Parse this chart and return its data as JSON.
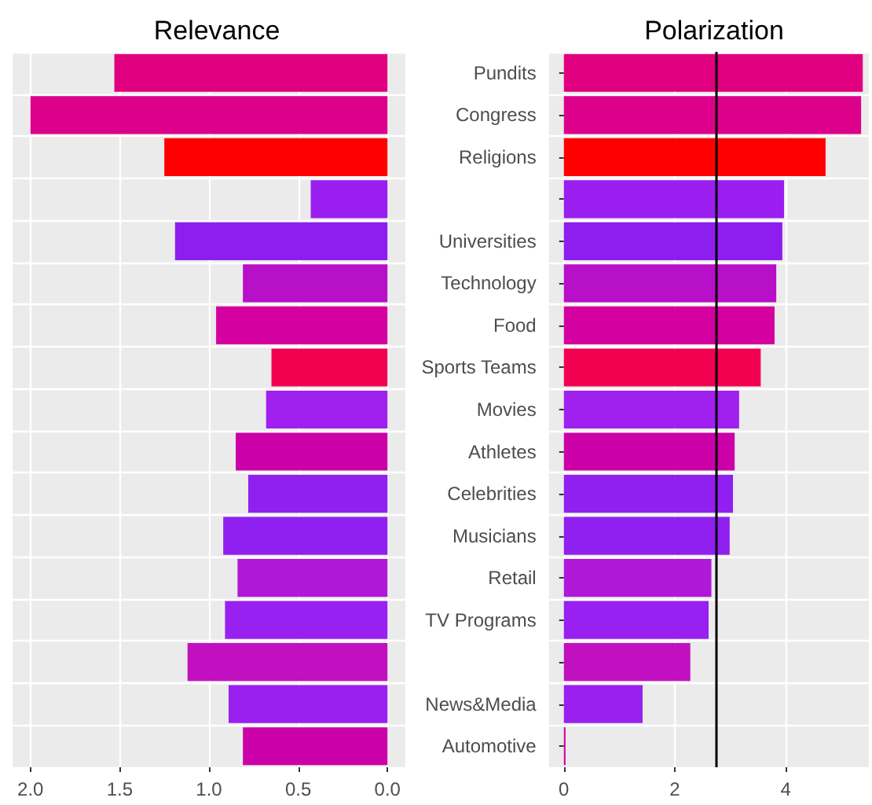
{
  "chart_data": [
    {
      "type": "bar",
      "title": "Relevance",
      "orientation": "horizontal",
      "tick_labels": "x",
      "grid": true,
      "categories": [
        null,
        null,
        null,
        null,
        null,
        null,
        null,
        null,
        null,
        null,
        null,
        null,
        null,
        null,
        null,
        null,
        null
      ],
      "values": [
        1.53,
        2.0,
        1.25,
        0.43,
        1.19,
        0.81,
        0.96,
        0.65,
        0.68,
        0.85,
        0.78,
        0.92,
        0.84,
        0.91,
        1.12,
        0.89,
        0.81
      ],
      "colors": [
        "#e0007f",
        "#dd008a",
        "#ff0000",
        "#9a1ef0",
        "#8e1ef0",
        "#b80fc8",
        "#d400a0",
        "#f20050",
        "#a020f0",
        "#cc00a8",
        "#9020f0",
        "#9020f0",
        "#b018d8",
        "#9820f0",
        "#c010c0",
        "#9a20f0",
        "#cc00a8"
      ],
      "xlim": [
        2.1,
        -0.1
      ],
      "xticks": [
        {
          "value": 2,
          "label": "2.0"
        },
        {
          "value": 1.5,
          "label": "1.5"
        },
        {
          "value": 1,
          "label": "1.0"
        },
        {
          "value": 0.5,
          "label": "0.5"
        },
        {
          "value": 0,
          "label": "0.0"
        }
      ]
    },
    {
      "type": "bar",
      "title": "Polarization",
      "orientation": "horizontal",
      "grid": true,
      "categories": [
        "Pundits",
        "Congress",
        "Religions",
        null,
        "Universities",
        "Technology",
        "Food",
        "Sports Teams",
        "Movies",
        "Athletes",
        "Celebrities",
        "Musicians",
        "Retail",
        "TV Programs",
        null,
        "News&Media",
        "Automotive"
      ],
      "values": [
        5.39,
        5.36,
        4.72,
        3.97,
        3.94,
        3.83,
        3.8,
        3.55,
        3.16,
        3.08,
        3.05,
        2.99,
        2.66,
        2.61,
        2.28,
        1.42,
        0.03
      ],
      "colors": [
        "#e0007f",
        "#dd008a",
        "#ff0000",
        "#9a1ef0",
        "#8e1ef0",
        "#b80fc8",
        "#d400a0",
        "#f20050",
        "#a020f0",
        "#cc00a8",
        "#9020f0",
        "#9020f0",
        "#b018d8",
        "#9820f0",
        "#c010c0",
        "#9a20f0",
        "#cc00a8"
      ],
      "xlim": [
        -0.27,
        5.5
      ],
      "xticks": [
        0,
        2,
        4
      ],
      "ref_lines": [
        {
          "axis": "x",
          "value": 2.74,
          "color": "#000000"
        }
      ]
    }
  ]
}
